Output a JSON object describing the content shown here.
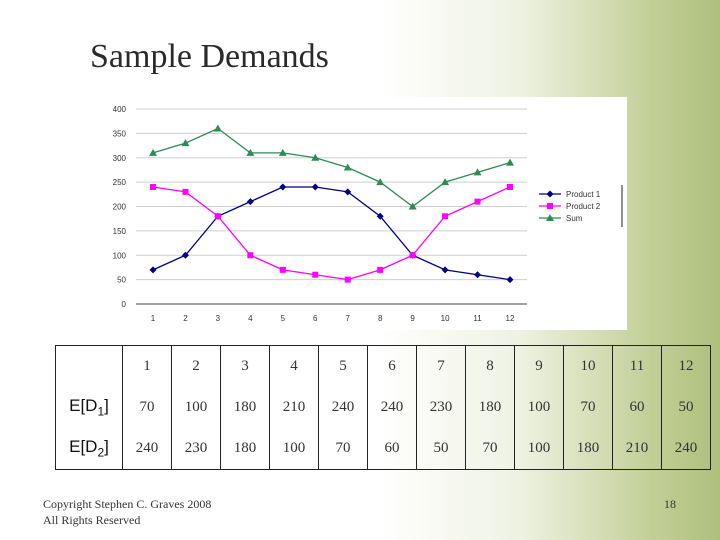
{
  "slide": {
    "title": "Sample Demands",
    "copyright_line1": "Copyright Stephen C. Graves 2008",
    "copyright_line2": "All Rights Reserved",
    "page_number": "18"
  },
  "chart_data": {
    "type": "line",
    "title": "",
    "xlabel": "",
    "ylabel": "",
    "categories": [
      "1",
      "2",
      "3",
      "4",
      "5",
      "6",
      "7",
      "8",
      "9",
      "10",
      "11",
      "12"
    ],
    "ylim": [
      0,
      400
    ],
    "yticks": [
      "0",
      "50",
      "100",
      "150",
      "200",
      "250",
      "300",
      "350",
      "400"
    ],
    "grid": "horizontal",
    "legend_position": "right",
    "series": [
      {
        "name": "Product 1",
        "color": "#000080",
        "marker": "diamond",
        "values": [
          70,
          100,
          180,
          210,
          240,
          240,
          230,
          180,
          100,
          70,
          60,
          50
        ]
      },
      {
        "name": "Product 2",
        "color": "#ff00ff",
        "marker": "square",
        "values": [
          240,
          230,
          180,
          100,
          70,
          60,
          50,
          70,
          100,
          180,
          210,
          240
        ]
      },
      {
        "name": "Sum",
        "color": "#2e8b57",
        "marker": "triangle",
        "values": [
          310,
          330,
          360,
          310,
          310,
          300,
          280,
          250,
          200,
          250,
          270,
          290
        ]
      }
    ]
  },
  "table": {
    "header": [
      "1",
      "2",
      "3",
      "4",
      "5",
      "6",
      "7",
      "8",
      "9",
      "10",
      "11",
      "12"
    ],
    "rows": [
      {
        "label_main": "E[D",
        "label_sub": "1",
        "label_end": "]",
        "values": [
          "70",
          "100",
          "180",
          "210",
          "240",
          "240",
          "230",
          "180",
          "100",
          "70",
          "60",
          "50"
        ]
      },
      {
        "label_main": "E[D",
        "label_sub": "2",
        "label_end": "]",
        "values": [
          "240",
          "230",
          "180",
          "100",
          "70",
          "60",
          "50",
          "70",
          "100",
          "180",
          "210",
          "240"
        ]
      }
    ]
  }
}
